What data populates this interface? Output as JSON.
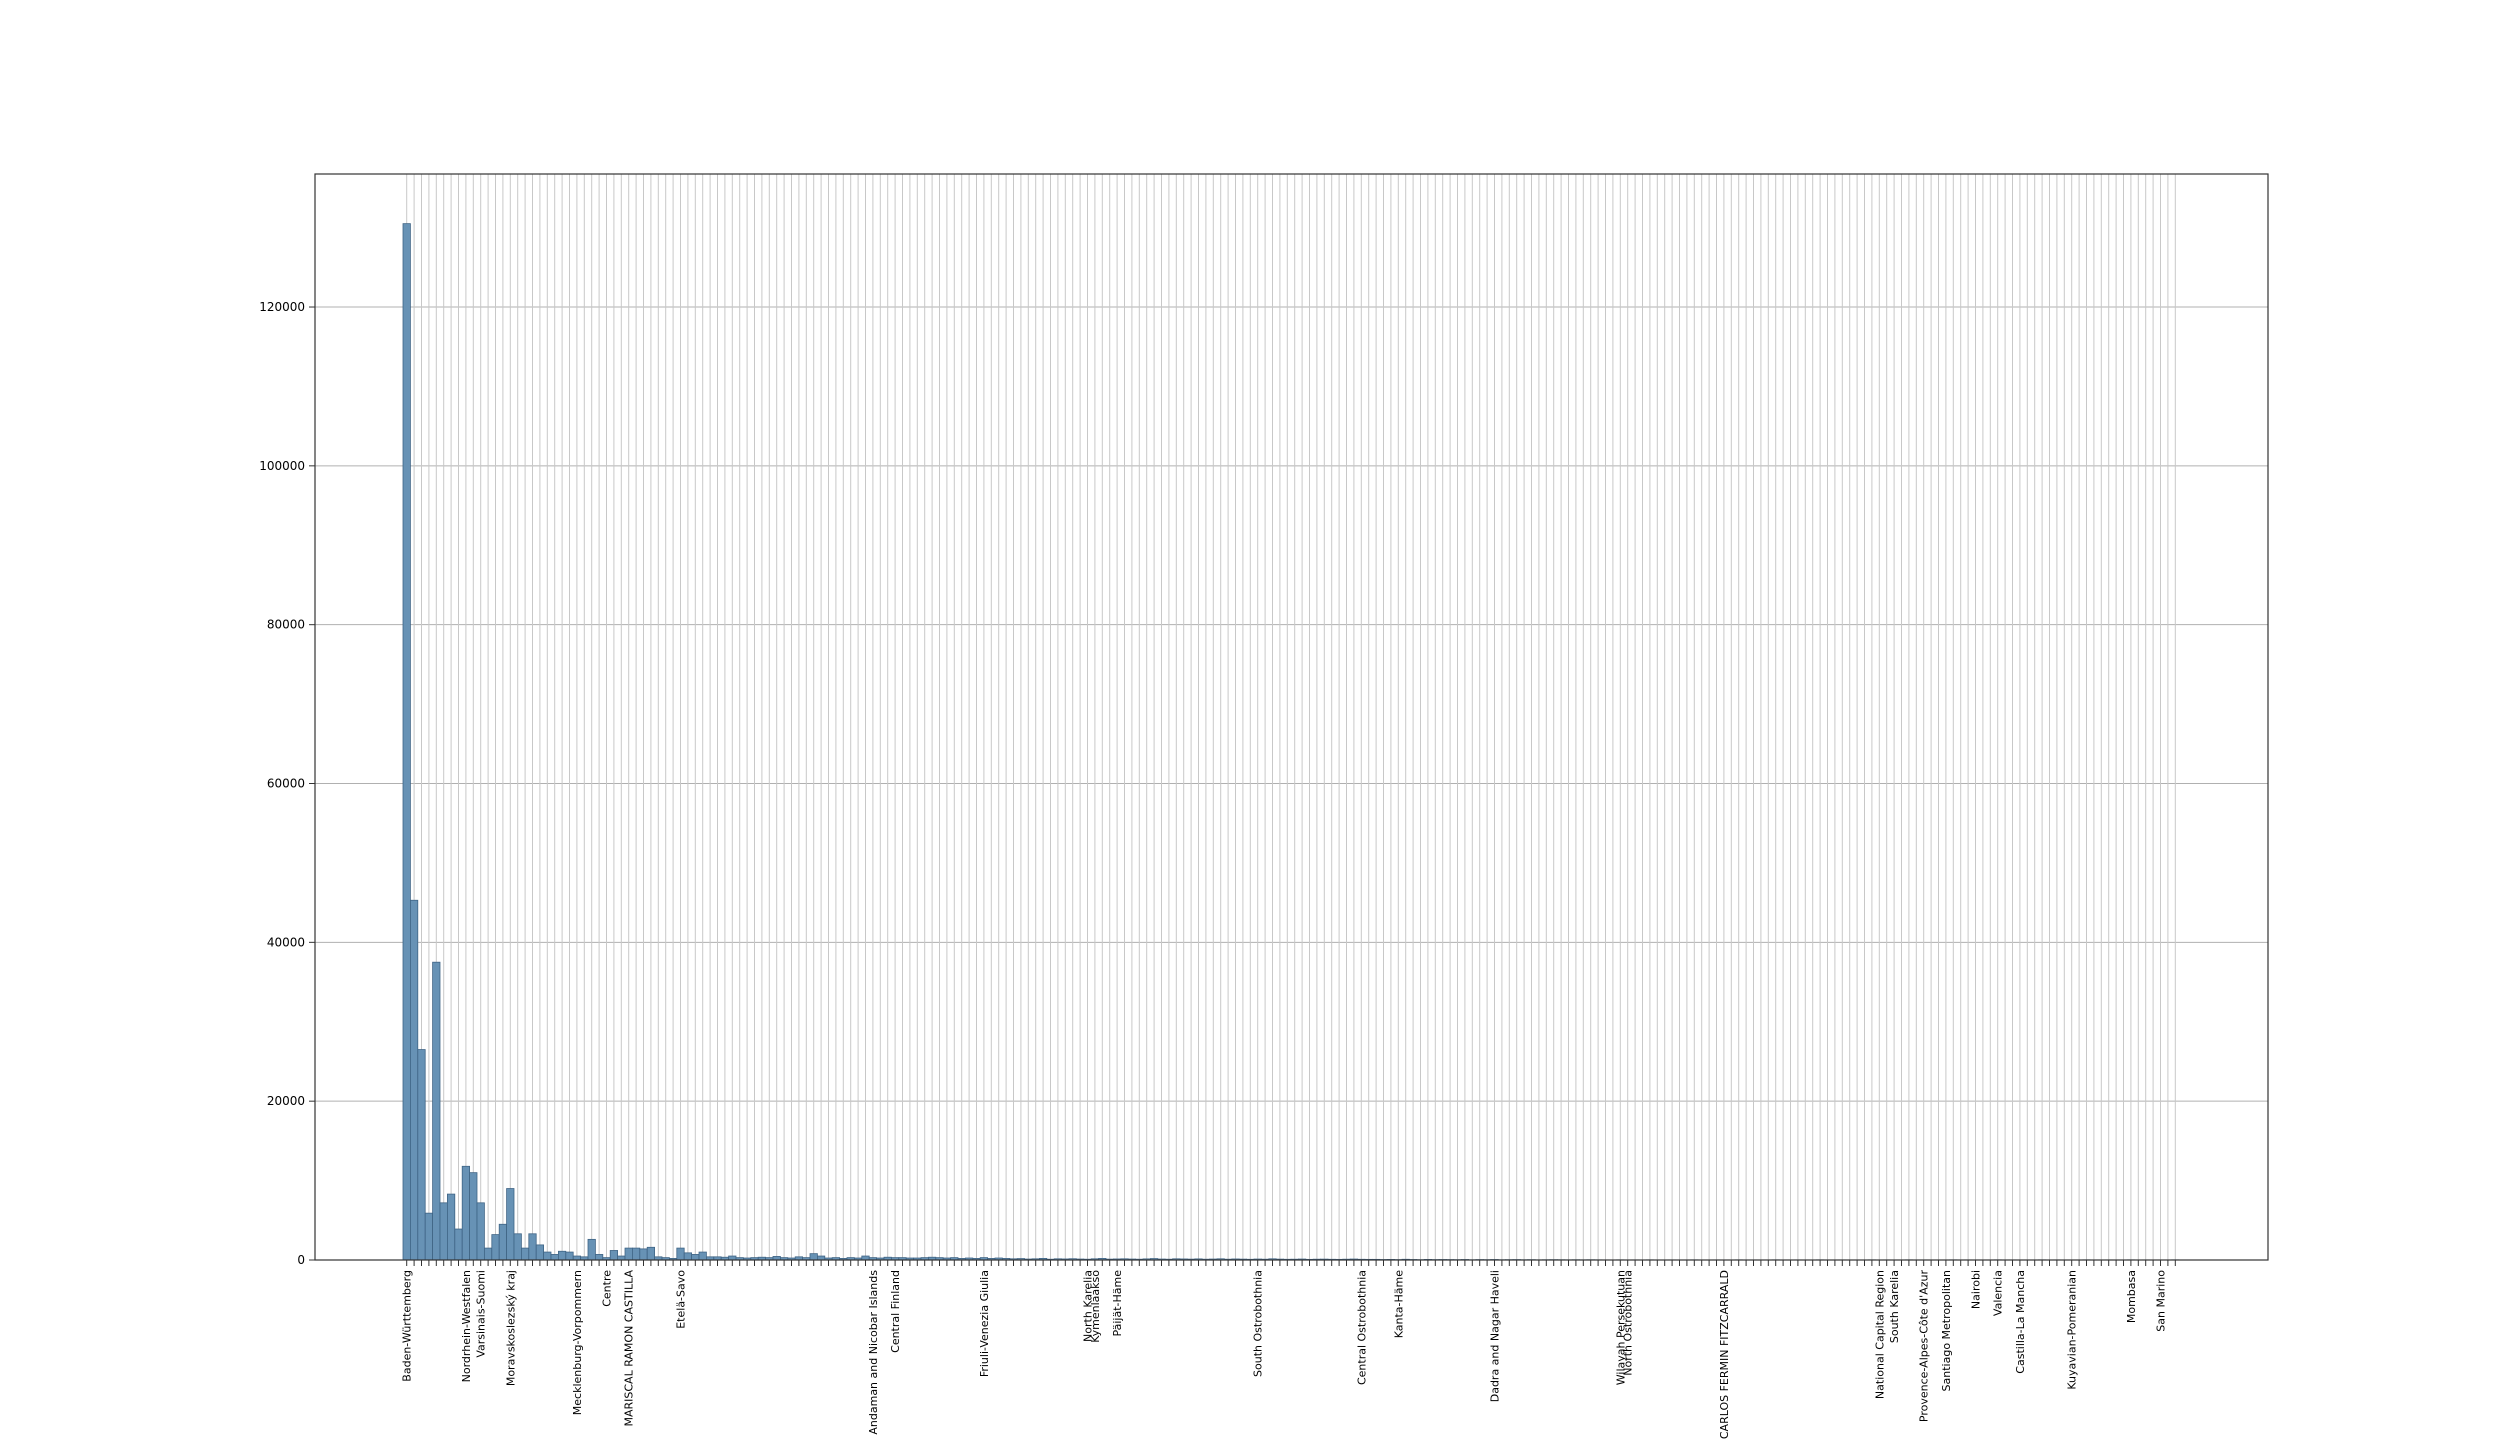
{
  "chart_data": {
    "type": "bar",
    "color": "#6792b5",
    "edgecolor": "#3f6485",
    "grid": true,
    "ylim": [
      0,
      136750
    ],
    "yticks": [
      0,
      20000,
      40000,
      60000,
      80000,
      100000,
      120000
    ],
    "categories": [
      "Baden-Württemberg",
      null,
      null,
      null,
      null,
      null,
      null,
      null,
      "Nordrhein-Westfalen",
      null,
      "Varsinais-Suomi",
      null,
      null,
      null,
      "Moravskoslezský kraj",
      null,
      null,
      null,
      null,
      null,
      null,
      null,
      null,
      "Mecklenburg-Vorpommern",
      null,
      null,
      null,
      "Centre",
      null,
      null,
      "MARISCAL RAMON CASTILLA",
      null,
      null,
      null,
      null,
      null,
      null,
      "Etelä-Savo",
      null,
      null,
      null,
      null,
      null,
      null,
      null,
      null,
      null,
      null,
      null,
      null,
      null,
      null,
      null,
      null,
      null,
      null,
      null,
      null,
      null,
      null,
      null,
      null,
      null,
      "Andaman and Nicobar Islands",
      null,
      null,
      "Central Finland",
      null,
      null,
      null,
      null,
      null,
      null,
      null,
      null,
      null,
      null,
      null,
      "Friuli-Venezia Giulia",
      null,
      null,
      null,
      null,
      null,
      null,
      null,
      null,
      null,
      null,
      null,
      null,
      null,
      "North Karelia",
      "Kymenlaakso",
      null,
      null,
      "Päijät-Häme",
      null,
      null,
      null,
      null,
      null,
      null,
      null,
      null,
      null,
      null,
      null,
      null,
      null,
      null,
      null,
      null,
      null,
      null,
      "South Ostrobothnia",
      null,
      null,
      null,
      null,
      null,
      null,
      null,
      null,
      null,
      null,
      null,
      null,
      null,
      "Central Ostrobothnia",
      null,
      null,
      null,
      null,
      "Kanta-Häme",
      null,
      null,
      null,
      null,
      null,
      null,
      null,
      null,
      null,
      null,
      null,
      null,
      "Dadra and Nagar Haveli",
      null,
      null,
      null,
      null,
      null,
      null,
      null,
      null,
      null,
      null,
      null,
      null,
      null,
      null,
      null,
      null,
      "Wilayah Persekutuan",
      "North Ostrobothnia",
      null,
      null,
      null,
      null,
      null,
      null,
      null,
      null,
      null,
      null,
      null,
      null,
      "CARLOS FERMIN FITZCARRALD",
      null,
      null,
      null,
      null,
      null,
      null,
      null,
      null,
      null,
      null,
      null,
      null,
      null,
      null,
      null,
      null,
      null,
      null,
      null,
      null,
      "National Capital Region",
      null,
      "South Karelia",
      null,
      null,
      null,
      "Provence-Alpes-Côte d'Azur",
      null,
      null,
      "Santiago Metropolitan",
      null,
      null,
      null,
      "Nairobi",
      null,
      null,
      "Valencia",
      null,
      null,
      "Castilla-La Mancha",
      null,
      null,
      null,
      null,
      null,
      null,
      "Kuyavian-Pomeranian",
      null,
      null,
      null,
      null,
      null,
      null,
      null,
      "Mombasa",
      null,
      null,
      null,
      "San Marino",
      null,
      null
    ],
    "values": [
      130500,
      45300,
      26500,
      5900,
      37500,
      7200,
      8300,
      3900,
      11800,
      11000,
      7200,
      1500,
      3200,
      4500,
      9000,
      3300,
      1500,
      3300,
      1900,
      1000,
      700,
      1100,
      1000,
      500,
      400,
      2600,
      700,
      300,
      1200,
      500,
      1500,
      1500,
      1400,
      1600,
      400,
      300,
      200,
      1500,
      900,
      700,
      1000,
      400,
      400,
      350,
      500,
      300,
      250,
      300,
      350,
      300,
      450,
      300,
      250,
      400,
      300,
      800,
      500,
      250,
      300,
      200,
      300,
      250,
      500,
      300,
      250,
      350,
      300,
      300,
      250,
      250,
      300,
      350,
      300,
      250,
      300,
      200,
      250,
      200,
      300,
      200,
      250,
      200,
      150,
      180,
      120,
      150,
      200,
      100,
      150,
      130,
      160,
      120,
      100,
      150,
      200,
      110,
      130,
      150,
      120,
      100,
      140,
      180,
      120,
      100,
      150,
      130,
      110,
      140,
      100,
      120,
      150,
      100,
      130,
      110,
      90,
      120,
      100,
      150,
      110,
      90,
      100,
      120,
      80,
      100,
      110,
      90,
      80,
      100,
      120,
      90,
      80,
      80,
      60,
      70,
      50,
      90,
      60,
      40,
      70,
      50,
      60,
      50,
      40,
      60,
      30,
      50,
      40,
      60,
      30,
      40,
      50,
      30,
      40,
      20,
      30,
      40,
      30,
      20,
      30,
      20,
      30,
      20,
      15,
      10,
      20,
      10,
      15,
      10,
      20,
      10,
      10,
      15,
      10,
      10,
      20,
      10,
      10,
      15,
      10,
      10,
      20,
      10,
      15,
      10,
      10,
      20,
      10,
      10,
      15,
      10,
      10,
      20,
      10,
      10,
      15,
      10,
      10,
      10,
      20,
      10,
      15,
      10,
      10,
      20,
      10,
      15,
      10,
      10,
      10,
      20,
      10,
      15,
      10,
      10,
      10,
      20,
      10,
      15,
      10,
      10,
      10,
      20,
      10,
      15,
      10,
      10,
      10,
      20,
      10,
      10,
      15,
      10,
      10,
      20,
      10,
      15,
      10,
      10,
      10,
      20
    ]
  }
}
